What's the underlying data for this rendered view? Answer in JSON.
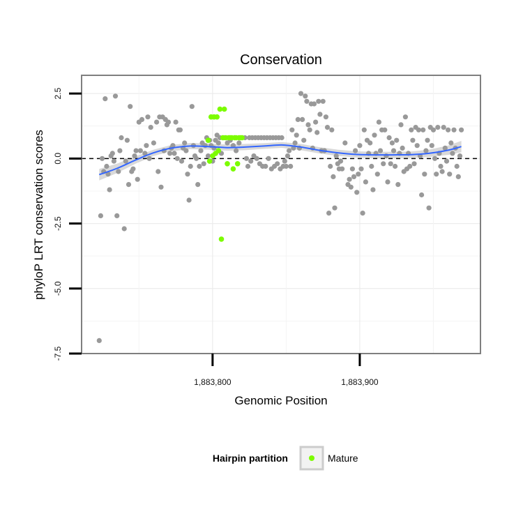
{
  "chart_data": {
    "type": "scatter",
    "title": "Conservation",
    "xlabel": "Genomic Position",
    "ylabel": "phyloP LRT conservation scores",
    "xlim": [
      1883711,
      1883982
    ],
    "ylim": [
      -7.5,
      3.2
    ],
    "x_ticks": [
      {
        "value": 1883800,
        "label": "1,883,800"
      },
      {
        "value": 1883900,
        "label": "1,883,900"
      }
    ],
    "y_ticks": [
      {
        "value": 2.5,
        "label": "2.5"
      },
      {
        "value": 0.0,
        "label": "0.0"
      },
      {
        "value": -2.5,
        "label": "-2.5"
      },
      {
        "value": -5.0,
        "label": "-5.0"
      },
      {
        "value": -7.5,
        "label": "-7.5"
      }
    ],
    "grid": true,
    "reference_line": {
      "y": 0,
      "style": "dashed"
    },
    "legend": {
      "title": "Hairpin partition",
      "position": "bottom",
      "entries": [
        {
          "label": "Mature",
          "color": "#7cfc00"
        }
      ]
    },
    "colors": {
      "other": "#999999",
      "mature": "#7cfc00",
      "smooth": "#3366ff",
      "band": "#cccccc",
      "panel_border": "#7f7f7f"
    },
    "other_points": [
      [
        1883723,
        -7.0
      ],
      [
        1883724,
        -2.2
      ],
      [
        1883725,
        0.0
      ],
      [
        1883726,
        -0.5
      ],
      [
        1883727,
        2.3
      ],
      [
        1883728,
        -0.3
      ],
      [
        1883729,
        -0.6
      ],
      [
        1883730,
        -1.2
      ],
      [
        1883731,
        0.1
      ],
      [
        1883732,
        0.2
      ],
      [
        1883733,
        -0.1
      ],
      [
        1883734,
        2.4
      ],
      [
        1883735,
        -2.2
      ],
      [
        1883736,
        -0.5
      ],
      [
        1883737,
        0.3
      ],
      [
        1883738,
        0.8
      ],
      [
        1883740,
        -2.7
      ],
      [
        1883741,
        -0.1
      ],
      [
        1883742,
        0.7
      ],
      [
        1883743,
        -1.0
      ],
      [
        1883744,
        2.0
      ],
      [
        1883745,
        -0.5
      ],
      [
        1883746,
        -0.4
      ],
      [
        1883747,
        0.1
      ],
      [
        1883748,
        0.3
      ],
      [
        1883749,
        -0.8
      ],
      [
        1883750,
        1.4
      ],
      [
        1883751,
        0.3
      ],
      [
        1883752,
        1.5
      ],
      [
        1883754,
        0.2
      ],
      [
        1883755,
        0.5
      ],
      [
        1883756,
        1.6
      ],
      [
        1883757,
        0.0
      ],
      [
        1883758,
        1.2
      ],
      [
        1883760,
        0.6
      ],
      [
        1883762,
        1.4
      ],
      [
        1883763,
        -0.5
      ],
      [
        1883764,
        1.6
      ],
      [
        1883765,
        -1.1
      ],
      [
        1883766,
        1.6
      ],
      [
        1883767,
        0.3
      ],
      [
        1883768,
        1.5
      ],
      [
        1883769,
        1.3
      ],
      [
        1883770,
        1.4
      ],
      [
        1883771,
        0.2
      ],
      [
        1883772,
        0.4
      ],
      [
        1883773,
        0.5
      ],
      [
        1883774,
        0.2
      ],
      [
        1883775,
        1.4
      ],
      [
        1883776,
        0.0
      ],
      [
        1883777,
        1.1
      ],
      [
        1883778,
        1.1
      ],
      [
        1883779,
        -0.1
      ],
      [
        1883780,
        0.4
      ],
      [
        1883781,
        0.6
      ],
      [
        1883782,
        0.3
      ],
      [
        1883783,
        -0.6
      ],
      [
        1883784,
        -1.6
      ],
      [
        1883785,
        -0.3
      ],
      [
        1883786,
        2.0
      ],
      [
        1883787,
        0.5
      ],
      [
        1883788,
        0.1
      ],
      [
        1883789,
        0.0
      ],
      [
        1883790,
        -1.0
      ],
      [
        1883791,
        -0.3
      ],
      [
        1883792,
        0.3
      ],
      [
        1883793,
        0.6
      ],
      [
        1883794,
        -0.2
      ],
      [
        1883795,
        0.5
      ],
      [
        1883796,
        0.8
      ],
      [
        1883797,
        0.1
      ],
      [
        1883798,
        0.7
      ],
      [
        1883799,
        0.5
      ],
      [
        1883800,
        -0.1
      ],
      [
        1883801,
        0.4
      ],
      [
        1883802,
        0.7
      ],
      [
        1883803,
        0.9
      ],
      [
        1883804,
        0.6
      ],
      [
        1883805,
        0.8
      ],
      [
        1883806,
        0.2
      ],
      [
        1883808,
        0.8
      ],
      [
        1883810,
        0.6
      ],
      [
        1883812,
        0.7
      ],
      [
        1883814,
        0.5
      ],
      [
        1883815,
        0.8
      ],
      [
        1883816,
        0.3
      ],
      [
        1883818,
        0.6
      ],
      [
        1883820,
        0.8
      ],
      [
        1883822,
        0.8
      ],
      [
        1883823,
        0.0
      ],
      [
        1883824,
        -0.3
      ],
      [
        1883825,
        0.8
      ],
      [
        1883826,
        -0.1
      ],
      [
        1883827,
        0.8
      ],
      [
        1883828,
        0.1
      ],
      [
        1883829,
        0.8
      ],
      [
        1883830,
        0.0
      ],
      [
        1883831,
        0.8
      ],
      [
        1883832,
        -0.2
      ],
      [
        1883833,
        0.8
      ],
      [
        1883834,
        -0.3
      ],
      [
        1883835,
        0.8
      ],
      [
        1883836,
        -0.3
      ],
      [
        1883837,
        0.8
      ],
      [
        1883838,
        0.0
      ],
      [
        1883839,
        0.8
      ],
      [
        1883840,
        -0.4
      ],
      [
        1883841,
        0.8
      ],
      [
        1883842,
        -0.3
      ],
      [
        1883843,
        0.8
      ],
      [
        1883844,
        -0.2
      ],
      [
        1883845,
        0.8
      ],
      [
        1883846,
        -0.4
      ],
      [
        1883847,
        0.8
      ],
      [
        1883848,
        -0.3
      ],
      [
        1883849,
        -0.1
      ],
      [
        1883850,
        -0.3
      ],
      [
        1883851,
        0.1
      ],
      [
        1883852,
        0.3
      ],
      [
        1883853,
        -0.3
      ],
      [
        1883854,
        1.1
      ],
      [
        1883855,
        0.4
      ],
      [
        1883856,
        0.6
      ],
      [
        1883857,
        0.9
      ],
      [
        1883858,
        1.5
      ],
      [
        1883859,
        0.4
      ],
      [
        1883860,
        2.5
      ],
      [
        1883861,
        1.5
      ],
      [
        1883862,
        0.7
      ],
      [
        1883863,
        2.4
      ],
      [
        1883864,
        2.2
      ],
      [
        1883865,
        1.3
      ],
      [
        1883866,
        1.1
      ],
      [
        1883867,
        2.1
      ],
      [
        1883868,
        0.4
      ],
      [
        1883869,
        2.1
      ],
      [
        1883870,
        1.4
      ],
      [
        1883871,
        1.0
      ],
      [
        1883872,
        2.2
      ],
      [
        1883873,
        1.7
      ],
      [
        1883874,
        0.3
      ],
      [
        1883875,
        2.2
      ],
      [
        1883876,
        0.3
      ],
      [
        1883877,
        1.6
      ],
      [
        1883878,
        1.2
      ],
      [
        1883879,
        -2.1
      ],
      [
        1883880,
        -0.3
      ],
      [
        1883881,
        1.1
      ],
      [
        1883882,
        -0.7
      ],
      [
        1883883,
        -1.9
      ],
      [
        1883884,
        0.1
      ],
      [
        1883885,
        -0.2
      ],
      [
        1883886,
        -0.4
      ],
      [
        1883887,
        -0.1
      ],
      [
        1883888,
        -0.4
      ],
      [
        1883890,
        0.6
      ],
      [
        1883892,
        -1.0
      ],
      [
        1883893,
        -0.8
      ],
      [
        1883894,
        -1.1
      ],
      [
        1883895,
        -0.4
      ],
      [
        1883896,
        -0.7
      ],
      [
        1883897,
        0.3
      ],
      [
        1883898,
        -1.3
      ],
      [
        1883899,
        -0.6
      ],
      [
        1883900,
        0.5
      ],
      [
        1883901,
        -0.4
      ],
      [
        1883902,
        -2.1
      ],
      [
        1883903,
        1.1
      ],
      [
        1883904,
        -0.9
      ],
      [
        1883905,
        0.7
      ],
      [
        1883906,
        0.2
      ],
      [
        1883907,
        0.6
      ],
      [
        1883908,
        -0.3
      ],
      [
        1883909,
        -1.2
      ],
      [
        1883910,
        0.9
      ],
      [
        1883911,
        0.2
      ],
      [
        1883912,
        -0.6
      ],
      [
        1883913,
        1.4
      ],
      [
        1883914,
        0.3
      ],
      [
        1883915,
        1.1
      ],
      [
        1883916,
        -0.2
      ],
      [
        1883917,
        1.1
      ],
      [
        1883918,
        0.1
      ],
      [
        1883919,
        -0.9
      ],
      [
        1883920,
        0.8
      ],
      [
        1883921,
        -0.2
      ],
      [
        1883922,
        0.6
      ],
      [
        1883923,
        0.3
      ],
      [
        1883924,
        -0.3
      ],
      [
        1883925,
        0.7
      ],
      [
        1883926,
        -1.0
      ],
      [
        1883927,
        0.2
      ],
      [
        1883928,
        1.3
      ],
      [
        1883929,
        0.4
      ],
      [
        1883930,
        -0.5
      ],
      [
        1883931,
        1.6
      ],
      [
        1883932,
        -0.4
      ],
      [
        1883933,
        0.2
      ],
      [
        1883934,
        -0.3
      ],
      [
        1883935,
        1.1
      ],
      [
        1883936,
        0.7
      ],
      [
        1883937,
        -0.2
      ],
      [
        1883938,
        1.2
      ],
      [
        1883939,
        0.5
      ],
      [
        1883940,
        1.1
      ],
      [
        1883941,
        0.1
      ],
      [
        1883942,
        -1.4
      ],
      [
        1883943,
        1.1
      ],
      [
        1883944,
        -0.6
      ],
      [
        1883945,
        0.3
      ],
      [
        1883946,
        0.7
      ],
      [
        1883947,
        -1.9
      ],
      [
        1883948,
        1.2
      ],
      [
        1883949,
        0.5
      ],
      [
        1883950,
        1.1
      ],
      [
        1883951,
        0.0
      ],
      [
        1883952,
        -0.6
      ],
      [
        1883953,
        1.2
      ],
      [
        1883954,
        0.2
      ],
      [
        1883955,
        -0.3
      ],
      [
        1883956,
        -0.5
      ],
      [
        1883957,
        1.2
      ],
      [
        1883958,
        0.4
      ],
      [
        1883959,
        -0.1
      ],
      [
        1883960,
        1.1
      ],
      [
        1883961,
        -0.6
      ],
      [
        1883962,
        0.6
      ],
      [
        1883963,
        0.2
      ],
      [
        1883964,
        1.1
      ],
      [
        1883965,
        0.4
      ],
      [
        1883966,
        -0.3
      ],
      [
        1883967,
        -0.7
      ],
      [
        1883968,
        0.1
      ],
      [
        1883969,
        1.1
      ]
    ],
    "mature_points": [
      [
        1883797,
        0.7
      ],
      [
        1883798,
        -0.1
      ],
      [
        1883799,
        1.6
      ],
      [
        1883800,
        0.1
      ],
      [
        1883801,
        1.6
      ],
      [
        1883802,
        0.2
      ],
      [
        1883803,
        1.6
      ],
      [
        1883804,
        0.3
      ],
      [
        1883805,
        1.9
      ],
      [
        1883806,
        -3.1
      ],
      [
        1883807,
        0.8
      ],
      [
        1883808,
        1.9
      ],
      [
        1883809,
        0.8
      ],
      [
        1883810,
        -0.2
      ],
      [
        1883811,
        0.8
      ],
      [
        1883812,
        0.8
      ],
      [
        1883813,
        0.8
      ],
      [
        1883814,
        -0.4
      ],
      [
        1883815,
        0.8
      ],
      [
        1883816,
        0.8
      ],
      [
        1883817,
        -0.2
      ],
      [
        1883818,
        0.8
      ],
      [
        1883819,
        0.8
      ],
      [
        1883820,
        0.8
      ]
    ],
    "smooth_curve": [
      [
        1883723,
        -0.62,
        0.22
      ],
      [
        1883735,
        -0.38,
        0.18
      ],
      [
        1883748,
        -0.05,
        0.14
      ],
      [
        1883760,
        0.22,
        0.12
      ],
      [
        1883772,
        0.4,
        0.12
      ],
      [
        1883785,
        0.48,
        0.12
      ],
      [
        1883797,
        0.46,
        0.12
      ],
      [
        1883810,
        0.42,
        0.12
      ],
      [
        1883822,
        0.44,
        0.12
      ],
      [
        1883835,
        0.48,
        0.11
      ],
      [
        1883847,
        0.52,
        0.11
      ],
      [
        1883860,
        0.44,
        0.12
      ],
      [
        1883872,
        0.32,
        0.12
      ],
      [
        1883885,
        0.22,
        0.12
      ],
      [
        1883897,
        0.16,
        0.12
      ],
      [
        1883910,
        0.14,
        0.12
      ],
      [
        1883922,
        0.14,
        0.12
      ],
      [
        1883935,
        0.15,
        0.12
      ],
      [
        1883947,
        0.2,
        0.14
      ],
      [
        1883960,
        0.32,
        0.18
      ],
      [
        1883969,
        0.46,
        0.22
      ]
    ]
  }
}
